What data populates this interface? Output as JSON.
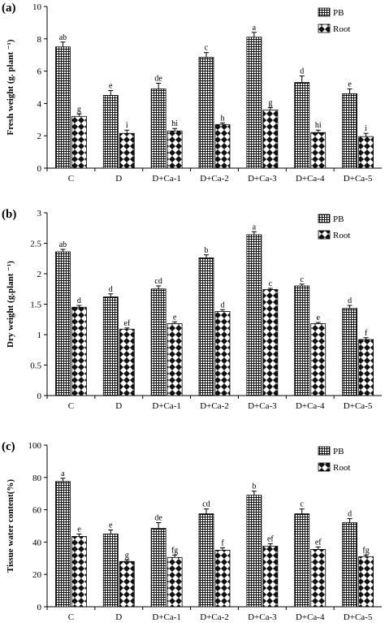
{
  "chart_data": [
    {
      "type": "bar",
      "panel_label": "(a)",
      "ylabel": "Fresh weight (g. plant ⁻¹)",
      "ylim": [
        0,
        10
      ],
      "yticks": [
        0,
        2,
        4,
        6,
        8,
        10
      ],
      "categories": [
        "C",
        "D",
        "D+Ca-1",
        "D+Ca-2",
        "D+Ca-3",
        "D+Ca-4",
        "D+Ca-5"
      ],
      "legend_position": "top-right",
      "series": [
        {
          "name": "PB",
          "pattern": "grid",
          "values": [
            7.5,
            4.5,
            4.9,
            6.85,
            8.1,
            5.3,
            4.6
          ],
          "errors": [
            0.3,
            0.3,
            0.35,
            0.3,
            0.3,
            0.4,
            0.3
          ],
          "letters": [
            "ab",
            "e",
            "de",
            "c",
            "a",
            "d",
            "e"
          ]
        },
        {
          "name": "Root",
          "pattern": "diamond",
          "values": [
            3.2,
            2.15,
            2.3,
            2.7,
            3.6,
            2.2,
            1.95
          ],
          "errors": [
            0.15,
            0.2,
            0.15,
            0.1,
            0.15,
            0.15,
            0.2
          ],
          "letters": [
            "g",
            "i",
            "hi",
            "h",
            "g",
            "hi",
            "i"
          ]
        }
      ]
    },
    {
      "type": "bar",
      "panel_label": "(b)",
      "ylabel": "Dry weight (g.plant ⁻¹)",
      "ylim": [
        0,
        3
      ],
      "yticks": [
        0,
        0.5,
        1,
        1.5,
        2,
        2.5,
        3
      ],
      "categories": [
        "C",
        "D",
        "D+Ca-1",
        "D+Ca-2",
        "D+Ca-3",
        "D+Ca-4",
        "D+Ca-5"
      ],
      "legend_position": "top-right",
      "series": [
        {
          "name": "PB",
          "pattern": "grid",
          "values": [
            2.36,
            1.62,
            1.75,
            2.26,
            2.64,
            1.8,
            1.43
          ],
          "errors": [
            0.04,
            0.05,
            0.05,
            0.05,
            0.05,
            0.03,
            0.05
          ],
          "letters": [
            "ab",
            "d",
            "cd",
            "b",
            "a",
            "c",
            "d"
          ]
        },
        {
          "name": "Root",
          "pattern": "diamond",
          "values": [
            1.45,
            1.09,
            1.18,
            1.38,
            1.74,
            1.18,
            0.92
          ],
          "errors": [
            0.03,
            0.02,
            0.03,
            0.03,
            0.02,
            0.02,
            0.03
          ],
          "letters": [
            "d",
            "ef",
            "e",
            "d",
            "c",
            "e",
            "f"
          ]
        }
      ]
    },
    {
      "type": "bar",
      "panel_label": "(c)",
      "ylabel": "Tissue water content(%)",
      "ylim": [
        0,
        100
      ],
      "yticks": [
        0,
        20,
        40,
        60,
        80,
        100
      ],
      "categories": [
        "C",
        "D",
        "D+Ca-1",
        "D+Ca-2",
        "D+Ca-3",
        "D+Ca-4",
        "D+Ca-5"
      ],
      "legend_position": "top-right",
      "series": [
        {
          "name": "PB",
          "pattern": "grid",
          "values": [
            77.5,
            45,
            48.5,
            57.5,
            69,
            57.5,
            52
          ],
          "errors": [
            2,
            2.5,
            3.5,
            3,
            2.5,
            3,
            2.5
          ],
          "letters": [
            "a",
            "e",
            "de",
            "cd",
            "b",
            "c",
            "d"
          ]
        },
        {
          "name": "Root",
          "pattern": "diamond",
          "values": [
            43.5,
            28,
            30.5,
            35,
            37.5,
            35.5,
            31
          ],
          "errors": [
            1.5,
            1,
            1.5,
            1.5,
            1.5,
            1.5,
            1
          ],
          "letters": [
            "e",
            "g",
            "fg",
            "f",
            "ef",
            "ef",
            "fg"
          ]
        }
      ]
    }
  ]
}
